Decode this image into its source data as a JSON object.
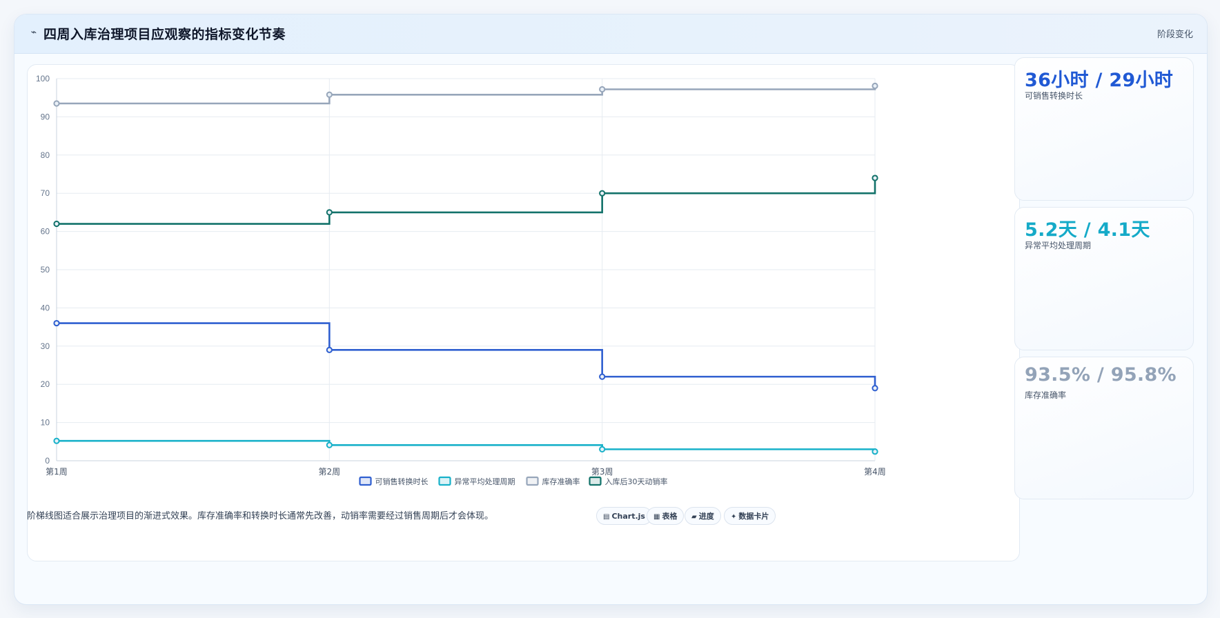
{
  "header": {
    "icon": "trend-line-icon",
    "title": "四周入库治理项目应观察的指标变化节奏",
    "tag": "阶段变化"
  },
  "chart_data": {
    "type": "line",
    "step": true,
    "categories": [
      "第1周",
      "第2周",
      "第3周",
      "第4周"
    ],
    "series": [
      {
        "name": "可销售转换时长",
        "color": "#2f5fd0",
        "values": [
          36,
          29,
          22,
          19
        ]
      },
      {
        "name": "异常平均处理周期",
        "color": "#17b1c9",
        "values": [
          5.2,
          4.1,
          3,
          2.4
        ]
      },
      {
        "name": "库存准确率",
        "color": "#97a6ba",
        "values": [
          93.5,
          95.8,
          97.2,
          98.1
        ]
      },
      {
        "name": "入库后30天动销率",
        "color": "#12726a",
        "values": [
          62,
          65,
          70,
          74
        ]
      }
    ],
    "ylim": [
      0,
      100
    ],
    "yticks": [
      0,
      10,
      20,
      30,
      40,
      50,
      60,
      70,
      80,
      90,
      100
    ],
    "grid": true,
    "legend_position": "bottom-center"
  },
  "stats": [
    {
      "value": "36小时 / 29小时",
      "label": "可销售转换时长",
      "color": "#2059d4"
    },
    {
      "value": "5.2天 / 4.1天",
      "label": "异常平均处理周期",
      "color": "#15aac8"
    },
    {
      "value": "93.5% / 95.8%",
      "label": "库存准确率",
      "color": "#93a3b8"
    }
  ],
  "footer": {
    "note": "阶梯线图适合展示治理项目的渐进式效果。库存准确率和转换时长通常先改善，动销率需要经过销售周期后才会体现。",
    "badges": [
      {
        "icon": "▤",
        "icon_name": "chart-icon",
        "label": "Chart.js"
      },
      {
        "icon": "▦",
        "icon_name": "table-icon",
        "label": "表格"
      },
      {
        "icon": "▰",
        "icon_name": "progress-icon",
        "label": "进度"
      },
      {
        "icon": "✦",
        "icon_name": "sparkle-icon",
        "label": "数据卡片"
      }
    ]
  }
}
